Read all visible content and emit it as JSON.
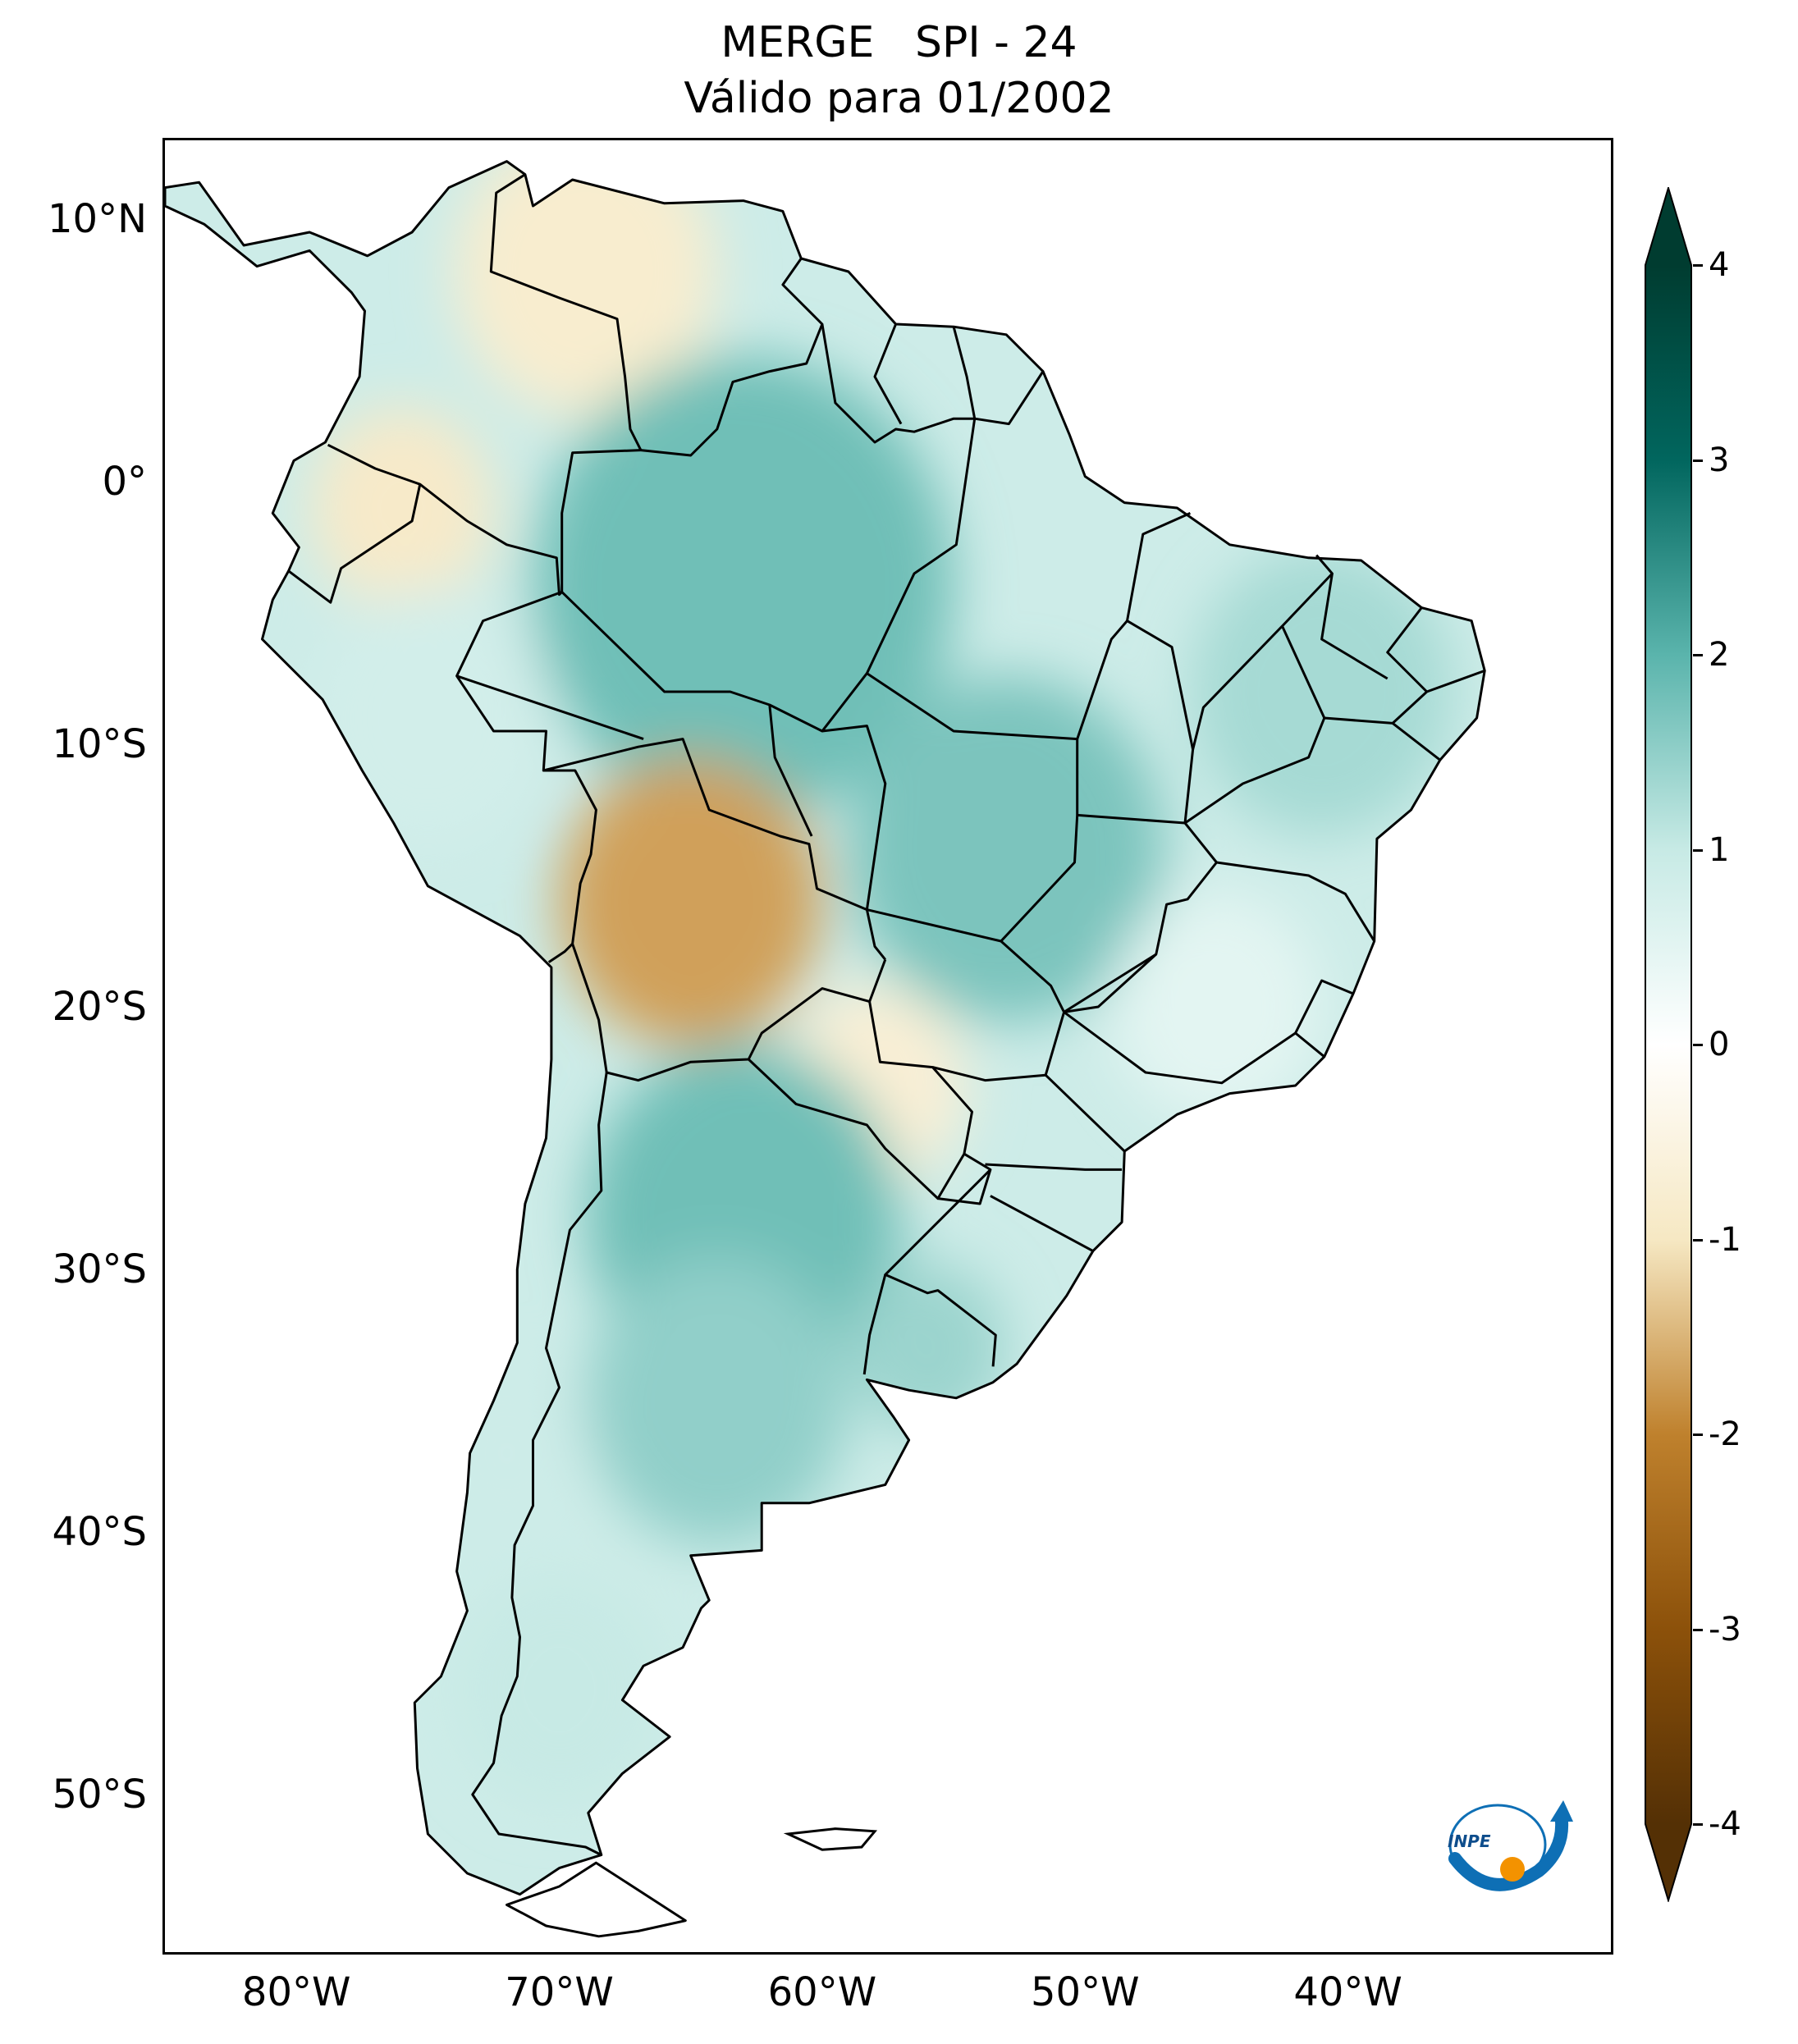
{
  "title": {
    "line1": "MERGE   SPI - 24",
    "line2": "Válido para 01/2002"
  },
  "map": {
    "region": "South America",
    "projection": "PlateCarree",
    "extent_lon": [
      -85,
      -30
    ],
    "extent_lat": [
      -56,
      13
    ],
    "lat_ticks": [
      {
        "value": 10,
        "label": "10°N"
      },
      {
        "value": 0,
        "label": "0°"
      },
      {
        "value": -10,
        "label": "10°S"
      },
      {
        "value": -20,
        "label": "20°S"
      },
      {
        "value": -30,
        "label": "30°S"
      },
      {
        "value": -40,
        "label": "40°S"
      },
      {
        "value": -50,
        "label": "50°S"
      }
    ],
    "lon_ticks": [
      {
        "value": -80,
        "label": "80°W"
      },
      {
        "value": -70,
        "label": "70°W"
      },
      {
        "value": -60,
        "label": "60°W"
      },
      {
        "value": -50,
        "label": "50°W"
      },
      {
        "value": -40,
        "label": "40°W"
      }
    ],
    "field_regions": [
      {
        "area": "Venezuela / Colombia north",
        "value": -0.8
      },
      {
        "area": "Ecuador / southern Colombia",
        "value": -0.9
      },
      {
        "area": "Amazonas / Pará (Brazil)",
        "value": 1.8
      },
      {
        "area": "Peru",
        "value": 0.8
      },
      {
        "area": "Bolivia",
        "value": -1.7
      },
      {
        "area": "Mato Grosso / Goiás",
        "value": 1.7
      },
      {
        "area": "Northeast Brazil",
        "value": 1.3
      },
      {
        "area": "Southeast Brazil",
        "value": 0.5
      },
      {
        "area": "Paraguay",
        "value": -0.7
      },
      {
        "area": "Northern Argentina",
        "value": 1.8
      },
      {
        "area": "Central Argentina",
        "value": 1.5
      },
      {
        "area": "Uruguay",
        "value": 1.4
      },
      {
        "area": "Chile",
        "value": 0.9
      },
      {
        "area": "Patagonia",
        "value": 1.0
      }
    ]
  },
  "colorbar": {
    "min": -4,
    "max": 4,
    "extend": "both",
    "ticks": [
      "4",
      "3",
      "2",
      "1",
      "0",
      "-1",
      "-2",
      "-3",
      "-4"
    ],
    "tick_values": [
      4,
      3,
      2,
      1,
      0,
      -1,
      -2,
      -3,
      -4
    ],
    "colors": {
      "-4": "#543005",
      "-3": "#8c510a",
      "-2": "#bf812d",
      "-1": "#f6e8c3",
      "0": "#ffffff",
      "1": "#c7eae5",
      "2": "#5ab4ac",
      "3": "#01665e",
      "4": "#003c30"
    }
  },
  "logo": {
    "text": "INPE",
    "colors": {
      "arc": "#0e6fb5",
      "dot": "#f39200"
    }
  }
}
